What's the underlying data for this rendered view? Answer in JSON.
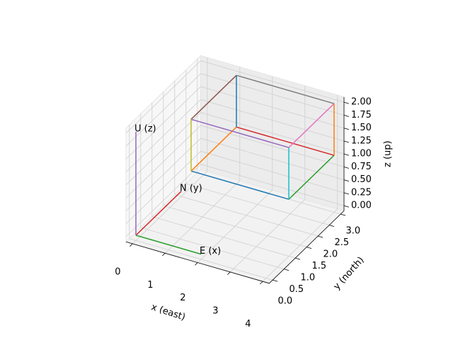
{
  "chart_data": {
    "type": "line3d",
    "xlabel": "x (east)",
    "ylabel": "y (north)",
    "zlabel": "z (up)",
    "xlim": [
      -0.2,
      4.2
    ],
    "ylim": [
      -0.15,
      3.15
    ],
    "zlim": [
      -0.1,
      2.1
    ],
    "xticks": [
      0,
      1,
      2,
      3,
      4
    ],
    "yticks": [
      {
        "value": 0,
        "label": "0.0"
      },
      0.5,
      {
        "value": 1,
        "label": "1.0"
      },
      1.5,
      {
        "value": 2,
        "label": "2.0"
      },
      2.5,
      {
        "value": 3,
        "label": "3.0"
      }
    ],
    "zticks": [
      {
        "value": 0,
        "label": "0.00"
      },
      0.25,
      {
        "value": 0.5,
        "label": "0.50"
      },
      0.75,
      {
        "value": 1,
        "label": "1.00"
      },
      1.25,
      {
        "value": 1.5,
        "label": "1.50"
      },
      1.75,
      {
        "value": 2,
        "label": "2.00"
      }
    ],
    "grid": true,
    "series": [
      {
        "color": "#2ca02c",
        "x": [
          0,
          2
        ],
        "y": [
          0,
          0
        ],
        "z": [
          0,
          0
        ]
      },
      {
        "color": "#d62728",
        "x": [
          0,
          0
        ],
        "y": [
          0,
          2
        ],
        "z": [
          0,
          0
        ]
      },
      {
        "color": "#9467bd",
        "x": [
          0,
          0
        ],
        "y": [
          0,
          0
        ],
        "z": [
          0,
          2
        ]
      },
      {
        "color": "#1f77b4",
        "x": [
          1,
          4
        ],
        "y": [
          1,
          1
        ],
        "z": [
          1,
          1
        ]
      },
      {
        "color": "#ff7f0e",
        "x": [
          1,
          1
        ],
        "y": [
          1,
          3
        ],
        "z": [
          1,
          1
        ]
      },
      {
        "color": "#2ca02c",
        "x": [
          4,
          4
        ],
        "y": [
          1,
          3
        ],
        "z": [
          1,
          1
        ]
      },
      {
        "color": "#d62728",
        "x": [
          1,
          4
        ],
        "y": [
          3,
          3
        ],
        "z": [
          1,
          1
        ]
      },
      {
        "color": "#9467bd",
        "x": [
          1,
          4
        ],
        "y": [
          1,
          1
        ],
        "z": [
          2,
          2
        ]
      },
      {
        "color": "#8c564b",
        "x": [
          1,
          1
        ],
        "y": [
          1,
          3
        ],
        "z": [
          2,
          2
        ]
      },
      {
        "color": "#e377c2",
        "x": [
          4,
          4
        ],
        "y": [
          1,
          3
        ],
        "z": [
          2,
          2
        ]
      },
      {
        "color": "#7f7f7f",
        "x": [
          1,
          4
        ],
        "y": [
          3,
          3
        ],
        "z": [
          2,
          2
        ]
      },
      {
        "color": "#bcbd22",
        "x": [
          1,
          1
        ],
        "y": [
          1,
          1
        ],
        "z": [
          1,
          2
        ]
      },
      {
        "color": "#17becf",
        "x": [
          4,
          4
        ],
        "y": [
          1,
          1
        ],
        "z": [
          1,
          2
        ]
      },
      {
        "color": "#1f77b4",
        "x": [
          1,
          1
        ],
        "y": [
          3,
          3
        ],
        "z": [
          1,
          2
        ]
      },
      {
        "color": "#ff7f0e",
        "x": [
          4,
          4
        ],
        "y": [
          3,
          3
        ],
        "z": [
          1,
          2
        ]
      }
    ],
    "annotations": [
      {
        "text": "E (x)",
        "x": 2,
        "y": 0,
        "z": 0
      },
      {
        "text": "N (y)",
        "x": 0,
        "y": 2,
        "z": 0
      },
      {
        "text": "U (z)",
        "x": 0,
        "y": 0,
        "z": 2
      }
    ]
  }
}
